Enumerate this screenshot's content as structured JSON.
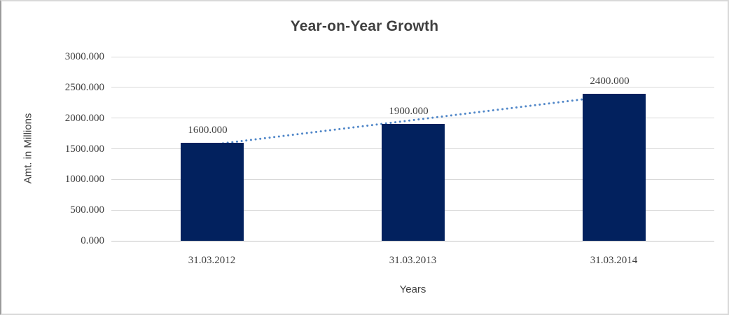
{
  "chart_data": {
    "type": "bar",
    "title": "Year-on-Year Growth",
    "xlabel": "Years",
    "ylabel": "Amt. in Millions",
    "categories": [
      "31.03.2012",
      "31.03.2013",
      "31.03.2014"
    ],
    "values": [
      1600,
      1900,
      2400
    ],
    "data_labels": [
      "1600.000",
      "1900.000",
      "2400.000"
    ],
    "ylim": [
      0,
      3000
    ],
    "ytick_step": 500,
    "ytick_labels": [
      "3000.000",
      "2500.000",
      "2000.000",
      "1500.000",
      "1000.000",
      "500.000",
      "0.000"
    ],
    "grid": true,
    "legend": "none",
    "trendline": {
      "kind": "linear",
      "style": "dotted"
    },
    "colors": {
      "bar": "#02215e",
      "trendline": "#4f86c8",
      "gridline": "#d9d9d9",
      "axis_line": "#c6c6c6",
      "text": "#3f3f3f"
    }
  }
}
